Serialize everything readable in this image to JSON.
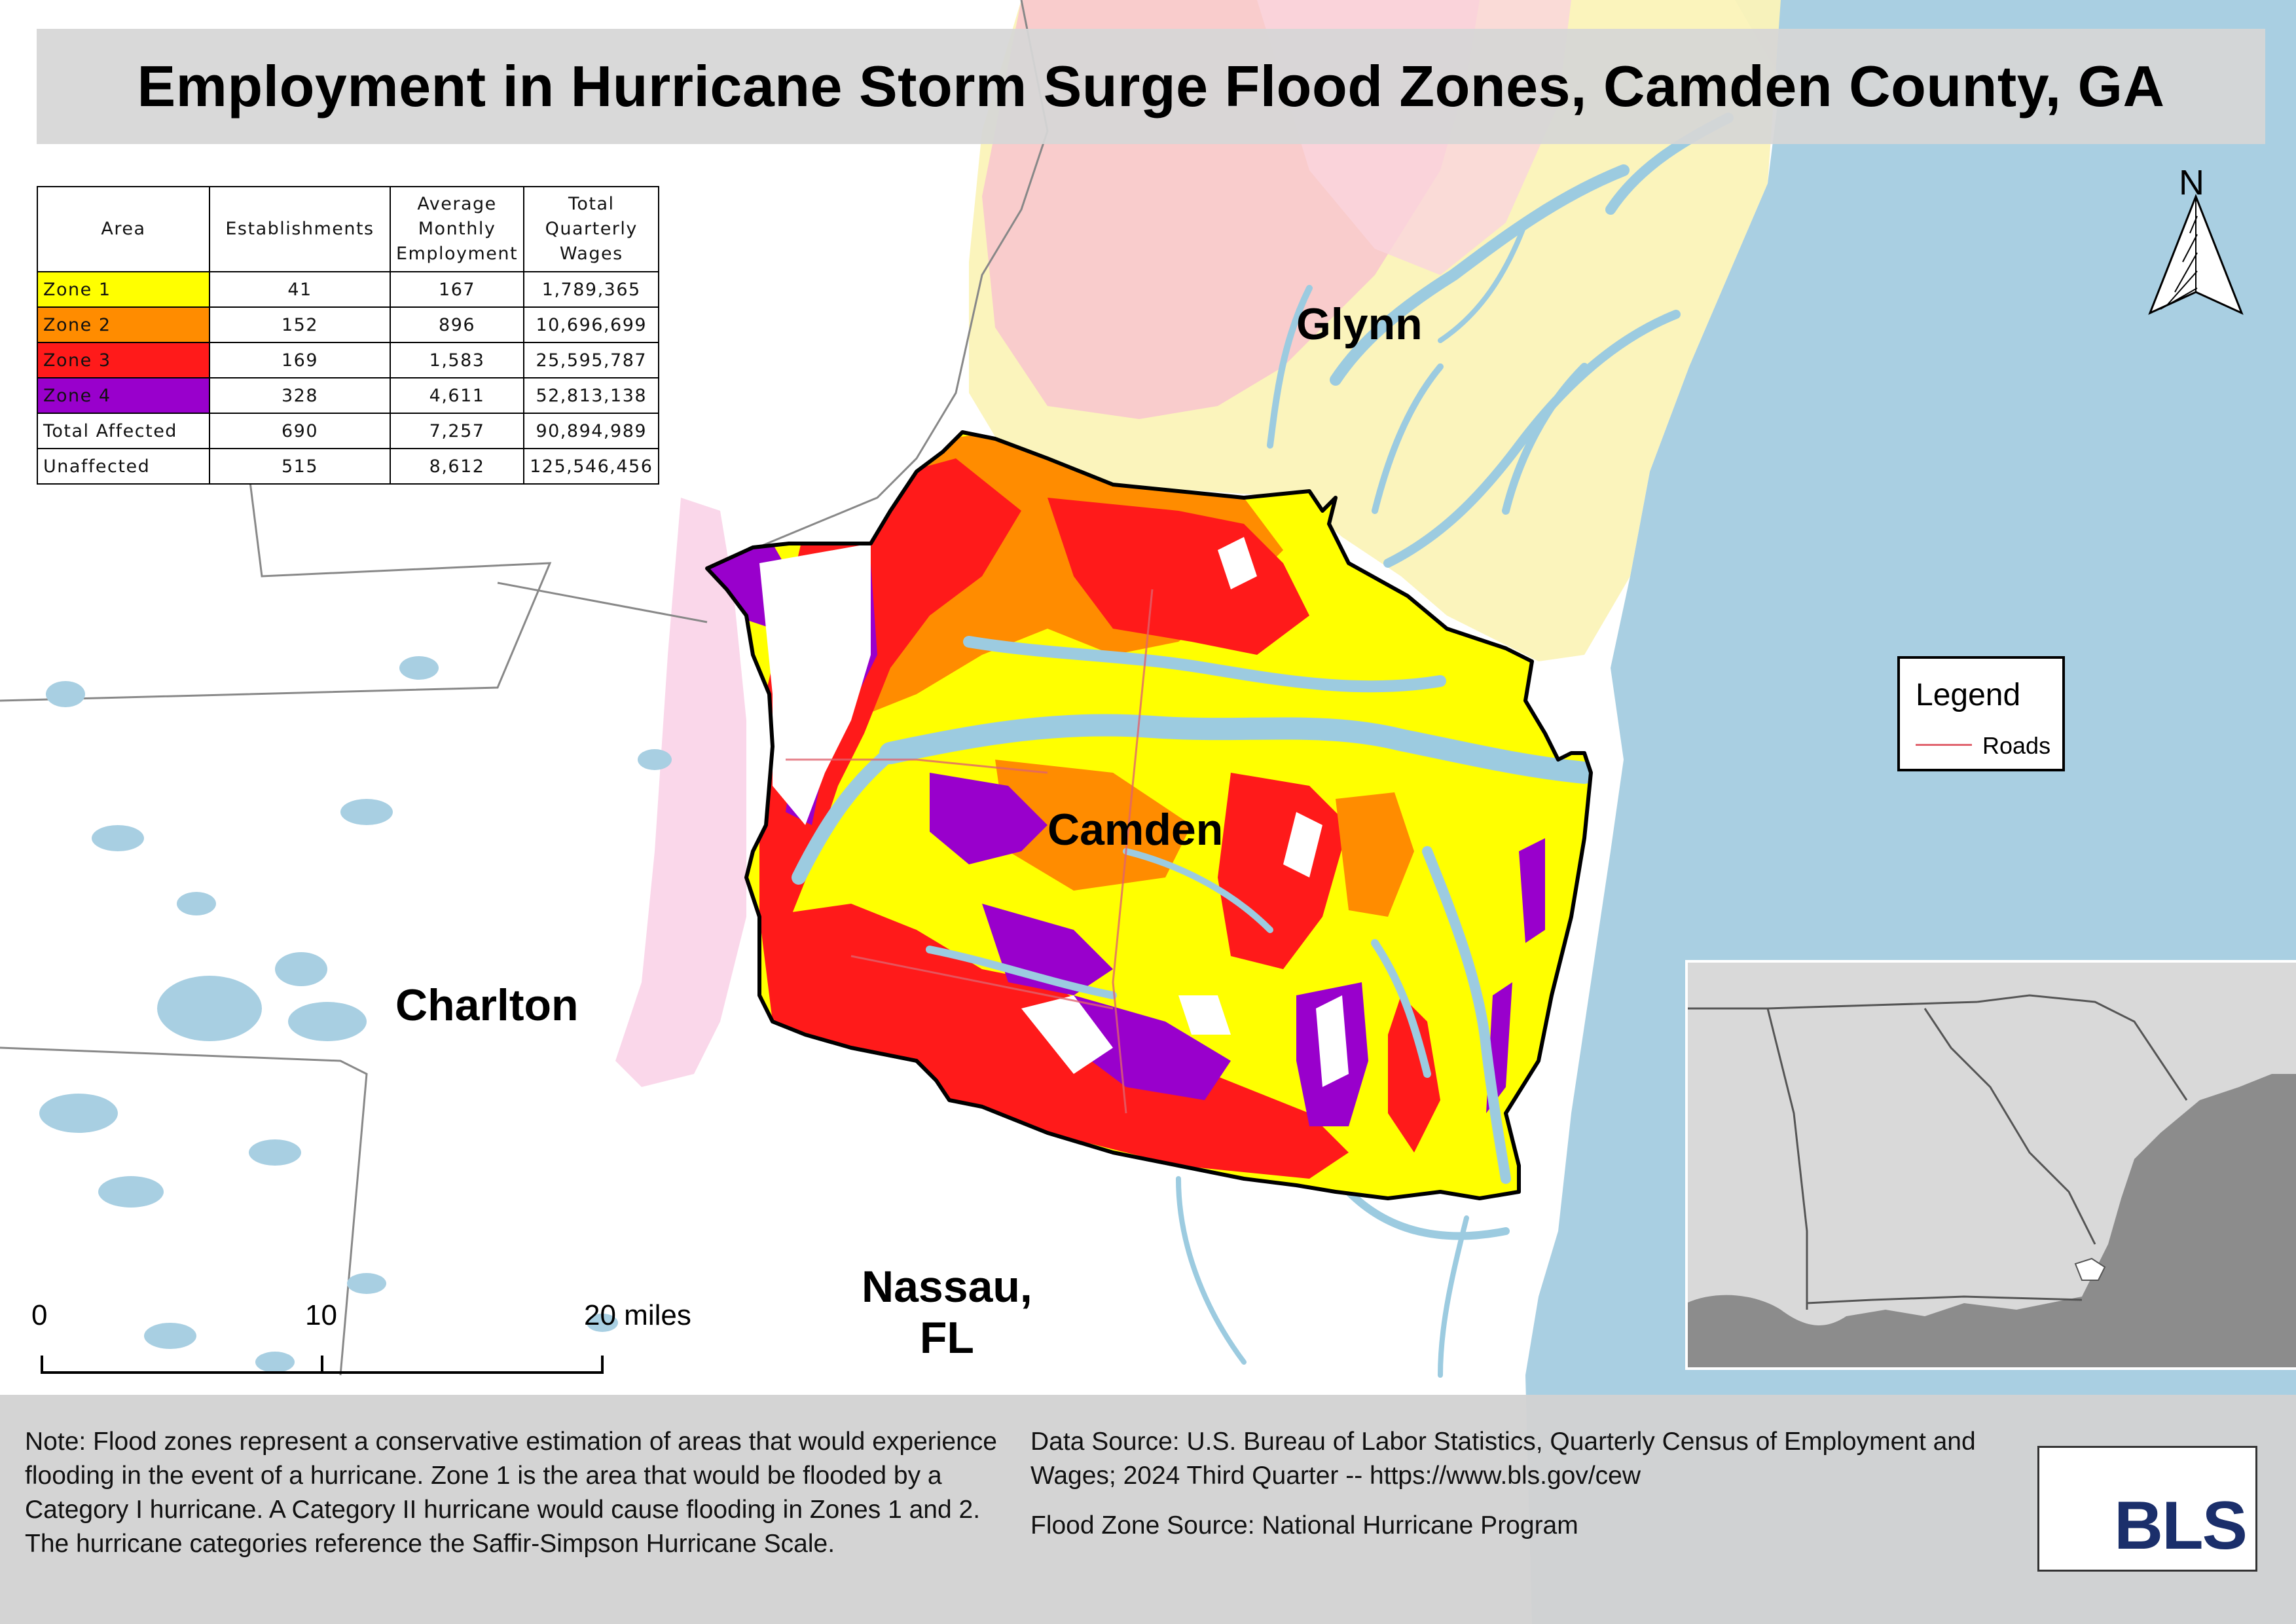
{
  "title": "Employment in Hurricane Storm Surge Flood Zones, Camden County, GA",
  "table": {
    "headers": [
      "Area",
      "Establishments",
      "Average Monthly Employment",
      "Total Quarterly Wages"
    ],
    "rows": [
      {
        "area": "Zone 1",
        "establishments": "41",
        "employment": "167",
        "wages": "1,789,365",
        "color": "#ffff00"
      },
      {
        "area": "Zone 2",
        "establishments": "152",
        "employment": "896",
        "wages": "10,696,699",
        "color": "#ff8c00"
      },
      {
        "area": "Zone 3",
        "establishments": "169",
        "employment": "1,583",
        "wages": "25,595,787",
        "color": "#ff1a1a"
      },
      {
        "area": "Zone 4",
        "establishments": "328",
        "employment": "4,611",
        "wages": "52,813,138",
        "color": "#9900cc"
      },
      {
        "area": "Total Affected",
        "establishments": "690",
        "employment": "7,257",
        "wages": "90,894,989",
        "color": "#ffffff"
      },
      {
        "area": "Unaffected",
        "establishments": "515",
        "employment": "8,612",
        "wages": "125,546,456",
        "color": "#ffffff"
      }
    ]
  },
  "county_labels": {
    "glynn": "Glynn",
    "camden": "Camden",
    "charlton": "Charlton",
    "nassau": "Nassau,\nFL"
  },
  "legend": {
    "title": "Legend",
    "roads_label": "Roads",
    "roads_color": "#e0636e"
  },
  "north_arrow": "N",
  "scale_bar": {
    "ticks": [
      "0",
      "10",
      "20 miles"
    ]
  },
  "note": "Note: Flood zones represent a conservative estimation of areas that would experience flooding in the event of a hurricane. Zone 1 is the area that would be flooded by a Category I hurricane. A Category II hurricane would cause flooding in Zones 1 and 2. The hurricane categories reference the Saffir-Simpson Hurricane Scale.",
  "data_source": "Data Source: U.S. Bureau of Labor Statistics, Quarterly Census of Employment and Wages; 2024 Third Quarter -- https://www.bls.gov/cew",
  "flood_source": "Flood Zone Source: National Hurricane Program",
  "logo_text": "BLS",
  "colors": {
    "ocean": "#a9cfe2",
    "water": "#9ccbe0",
    "zone1": "#ffff00",
    "zone2": "#ff8c00",
    "zone3": "#ff1a1a",
    "zone4": "#9900cc",
    "inset_land": "#d9d9d9",
    "inset_water": "#8c8c8c"
  }
}
